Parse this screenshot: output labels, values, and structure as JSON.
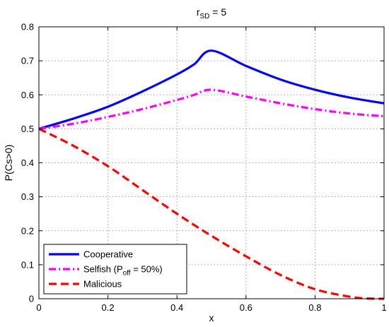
{
  "chart_data": {
    "type": "line",
    "title": {
      "base": "r",
      "sub": "SD",
      "rest": " = 5"
    },
    "xlabel": "x",
    "ylabel": "P(Cs>0)",
    "xlim": [
      0,
      1
    ],
    "ylim": [
      0,
      0.8
    ],
    "xticks": [
      "0",
      "0.2",
      "0.4",
      "0.6",
      "0.8",
      "1"
    ],
    "yticks": [
      "0",
      "0.1",
      "0.2",
      "0.3",
      "0.4",
      "0.5",
      "0.6",
      "0.7",
      "0.8"
    ],
    "grid": true,
    "legend_position": "bottom-left",
    "series": [
      {
        "name": "Cooperative",
        "color": "#0000ff",
        "style": "solid",
        "x": [
          0,
          0.1,
          0.2,
          0.3,
          0.4,
          0.45,
          0.5,
          0.6,
          0.7,
          0.8,
          0.9,
          1.0
        ],
        "y": [
          0.5,
          0.53,
          0.565,
          0.61,
          0.66,
          0.69,
          0.73,
          0.685,
          0.645,
          0.615,
          0.592,
          0.575
        ]
      },
      {
        "name": "Selfish (P",
        "name_sub": "off",
        "name_rest": " = 50%)",
        "color": "#ff00ff",
        "style": "dashdot",
        "x": [
          0,
          0.1,
          0.2,
          0.3,
          0.4,
          0.45,
          0.5,
          0.6,
          0.7,
          0.8,
          0.9,
          1.0
        ],
        "y": [
          0.5,
          0.515,
          0.535,
          0.558,
          0.585,
          0.6,
          0.615,
          0.595,
          0.575,
          0.558,
          0.545,
          0.537
        ]
      },
      {
        "name": "Malicious",
        "color": "#ff0000",
        "style": "dashed",
        "x": [
          0,
          0.1,
          0.2,
          0.3,
          0.4,
          0.5,
          0.6,
          0.7,
          0.8,
          0.9,
          0.95,
          1.0
        ],
        "y": [
          0.5,
          0.45,
          0.39,
          0.32,
          0.25,
          0.185,
          0.125,
          0.07,
          0.028,
          0.006,
          0.001,
          0.0
        ]
      }
    ]
  }
}
